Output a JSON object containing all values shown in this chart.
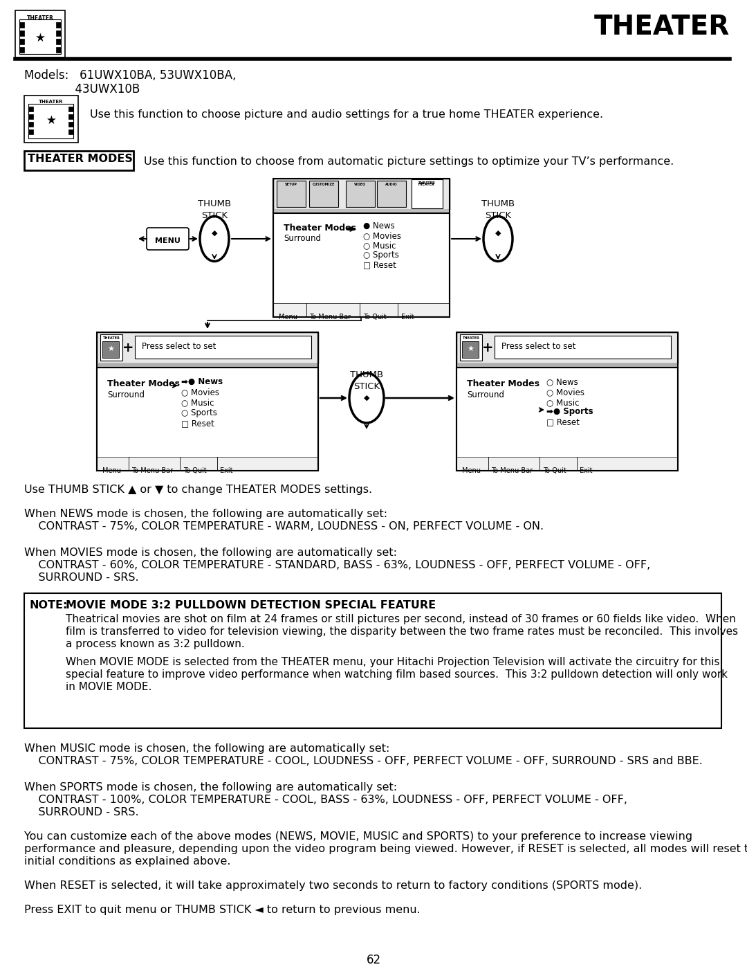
{
  "page_title": "THEATER",
  "models_line1": "Models:   61UWX10BA, 53UWX10BA,",
  "models_line2": "              43UWX10B",
  "theater_icon_desc": "Use this function to choose picture and audio settings for a true home THEATER experience.",
  "theater_modes_label": "THEATER MODES",
  "theater_modes_desc": "Use this function to choose from automatic picture settings to optimize your TV’s performance.",
  "use_thumb_stick": "Use THUMB STICK ▲ or ▼ to change THEATER MODES settings.",
  "news_intro": "When NEWS mode is chosen, the following are automatically set:",
  "news_settings": "    CONTRAST - 75%, COLOR TEMPERATURE - WARM, LOUDNESS - ON, PERFECT VOLUME - ON.",
  "movies_intro": "When MOVIES mode is chosen, the following are automatically set:",
  "movies_settings1": "    CONTRAST - 60%, COLOR TEMPERATURE - STANDARD, BASS - 63%, LOUDNESS - OFF, PERFECT VOLUME - OFF,",
  "movies_settings2": "    SURROUND - SRS.",
  "note_label": "NOTE:",
  "note_title": "MOVIE MODE 3:2 PULLDOWN DETECTION SPECIAL FEATURE",
  "note_p1_line1": "Theatrical movies are shot on film at 24 frames or still pictures per second, instead of 30 frames or 60 fields like video.  When",
  "note_p1_line2": "film is transferred to video for television viewing, the disparity between the two frame rates must be reconciled.  This involves",
  "note_p1_line3": "a process known as 3:2 pulldown.",
  "note_p2_line1": "When MOVIE MODE is selected from the THEATER menu, your Hitachi Projection Television will activate the circuitry for this",
  "note_p2_line2": "special feature to improve video performance when watching film based sources.  This 3:2 pulldown detection will only work",
  "note_p2_line3": "in MOVIE MODE.",
  "music_intro": "When MUSIC mode is chosen, the following are automatically set:",
  "music_settings": "    CONTRAST - 75%, COLOR TEMPERATURE - COOL, LOUDNESS - OFF, PERFECT VOLUME - OFF, SURROUND - SRS and BBE.",
  "sports_intro": "When SPORTS mode is chosen, the following are automatically set:",
  "sports_settings1": "    CONTRAST - 100%, COLOR TEMPERATURE - COOL, BASS - 63%, LOUDNESS - OFF, PERFECT VOLUME - OFF,",
  "sports_settings2": "    SURROUND - SRS.",
  "customize_line1": "You can customize each of the above modes (NEWS, MOVIE, MUSIC and SPORTS) to your preference to increase viewing",
  "customize_line2": "performance and pleasure, depending upon the video program being viewed. However, if RESET is selected, all modes will reset to the",
  "customize_line3": "initial conditions as explained above.",
  "reset_text": "When RESET is selected, it will take approximately two seconds to return to factory conditions (SPORTS mode).",
  "exit_text": "Press EXIT to quit menu or THUMB STICK ◄ to return to previous menu.",
  "page_number": "62",
  "bg": "#ffffff"
}
